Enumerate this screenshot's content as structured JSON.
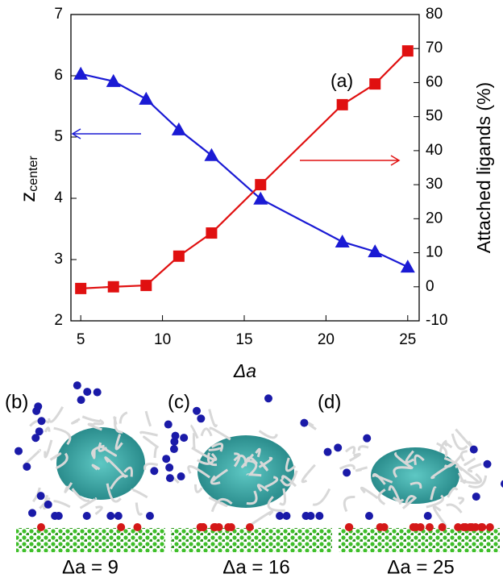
{
  "chart_data": {
    "type": "line",
    "annotation": "(a)",
    "x_label": "Δa",
    "y_label": "z",
    "y_label_sub": "center",
    "y2_label": "Attached ligands (%)",
    "x": [
      5,
      7,
      9,
      11,
      13,
      16,
      21,
      23,
      25
    ],
    "series": [
      {
        "name": "z_center",
        "color": "#1a1ad4",
        "marker": "triangle",
        "axis": "y",
        "values": [
          6.03,
          5.91,
          5.62,
          5.12,
          4.7,
          3.99,
          3.29,
          3.13,
          2.88
        ]
      },
      {
        "name": "Attached ligands",
        "color": "#e01010",
        "marker": "square",
        "axis": "y2",
        "values": [
          -0.5,
          0,
          0.4,
          9,
          15.8,
          30,
          53.5,
          59.6,
          69.3
        ]
      }
    ],
    "xlim": [
      4.4,
      25.7
    ],
    "xticks": [
      5,
      10,
      15,
      20,
      25
    ],
    "ylim": [
      2,
      7
    ],
    "yticks": [
      2,
      3,
      4,
      5,
      6,
      7
    ],
    "y2lim": [
      -10,
      80
    ],
    "y2ticks": [
      -10,
      0,
      10,
      20,
      30,
      40,
      50,
      60,
      70,
      80
    ],
    "panels": [
      {
        "label": "(b)",
        "caption": "Δa = 9"
      },
      {
        "label": "(c)",
        "caption": "Δa = 16"
      },
      {
        "label": "(d)",
        "caption": "Δa = 25"
      }
    ]
  }
}
